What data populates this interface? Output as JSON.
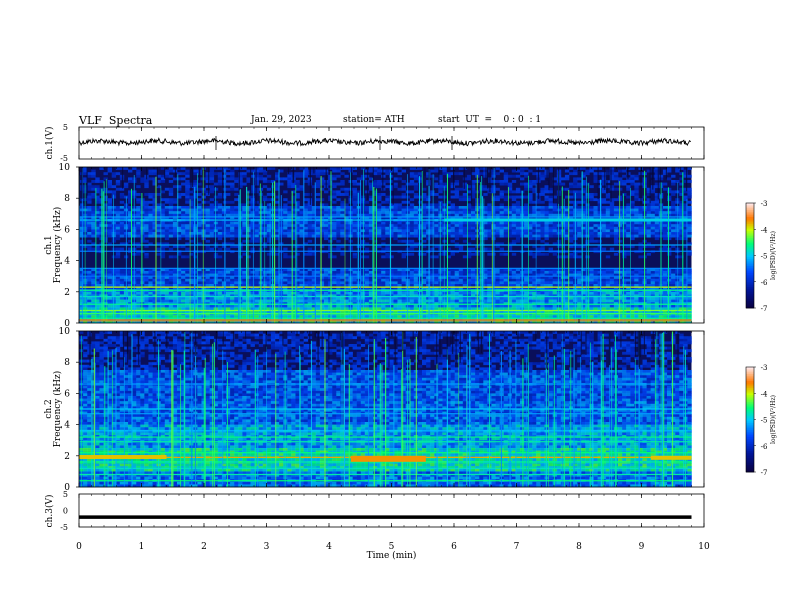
{
  "header": {
    "title": "VLF  Spectra",
    "date": "Jan. 29, 2023",
    "station": "station= ATH",
    "start_ut": "start  UT  =    0 : 0  : 1"
  },
  "chart_data": [
    {
      "type": "line",
      "panel": "ch1-waveform",
      "ylabel": "ch.1(V)",
      "yticks": [
        "5",
        "-5"
      ],
      "ylim": [
        -5,
        5
      ],
      "xlim": [
        0,
        10
      ],
      "series": [
        {
          "values": [
            0.1,
            0.4,
            -0.3,
            0.2,
            0.5,
            -0.1,
            0.3,
            0.1,
            -0.2,
            0.4,
            0.2,
            0.0,
            0.3,
            -0.1,
            0.2,
            0.4,
            0.1,
            -0.2,
            0.3,
            0.1
          ]
        }
      ]
    },
    {
      "type": "heatmap",
      "panel": "ch1-spectrogram",
      "ylabel": "Frequency  (kHz)",
      "channel_label": "ch.1",
      "yticks": [
        "0",
        "2",
        "4",
        "6",
        "8",
        "10"
      ],
      "ylim": [
        0,
        10
      ],
      "xlim": [
        0,
        9.8
      ],
      "colorbar": {
        "label": "log(PSD)(V²/Hz)",
        "ticks": [
          "-3",
          "-4",
          "-5",
          "-6",
          "-7"
        ],
        "range": [
          -7,
          -3
        ]
      }
    },
    {
      "type": "heatmap",
      "panel": "ch2-spectrogram",
      "ylabel": "Frequency  (kHz)",
      "channel_label": "ch.2",
      "yticks": [
        "0",
        "2",
        "4",
        "6",
        "8",
        "10"
      ],
      "ylim": [
        0,
        10
      ],
      "xlim": [
        0,
        9.8
      ],
      "colorbar": {
        "label": "log(PSD)(V²/Hz)",
        "ticks": [
          "-3",
          "-4",
          "-5",
          "-6",
          "-7"
        ],
        "range": [
          -7,
          -3
        ]
      }
    },
    {
      "type": "line",
      "panel": "ch3-waveform",
      "ylabel": "ch.3(V)",
      "yticks": [
        "5",
        "0",
        "-5"
      ],
      "ylim": [
        -5,
        5
      ],
      "xlim": [
        0,
        10
      ],
      "series": [
        {
          "values": [
            -2.0,
            -2.0,
            -2.0,
            -2.0,
            -2.0,
            -2.0,
            -2.0,
            -2.0,
            -2.0,
            -2.0
          ]
        }
      ]
    }
  ],
  "xaxis": {
    "label": "Time  (min)",
    "ticks": [
      "0",
      "1",
      "2",
      "3",
      "4",
      "5",
      "6",
      "7",
      "8",
      "9",
      "10"
    ]
  },
  "colors": {
    "background": "#0a0f5a",
    "line": "#000000"
  }
}
